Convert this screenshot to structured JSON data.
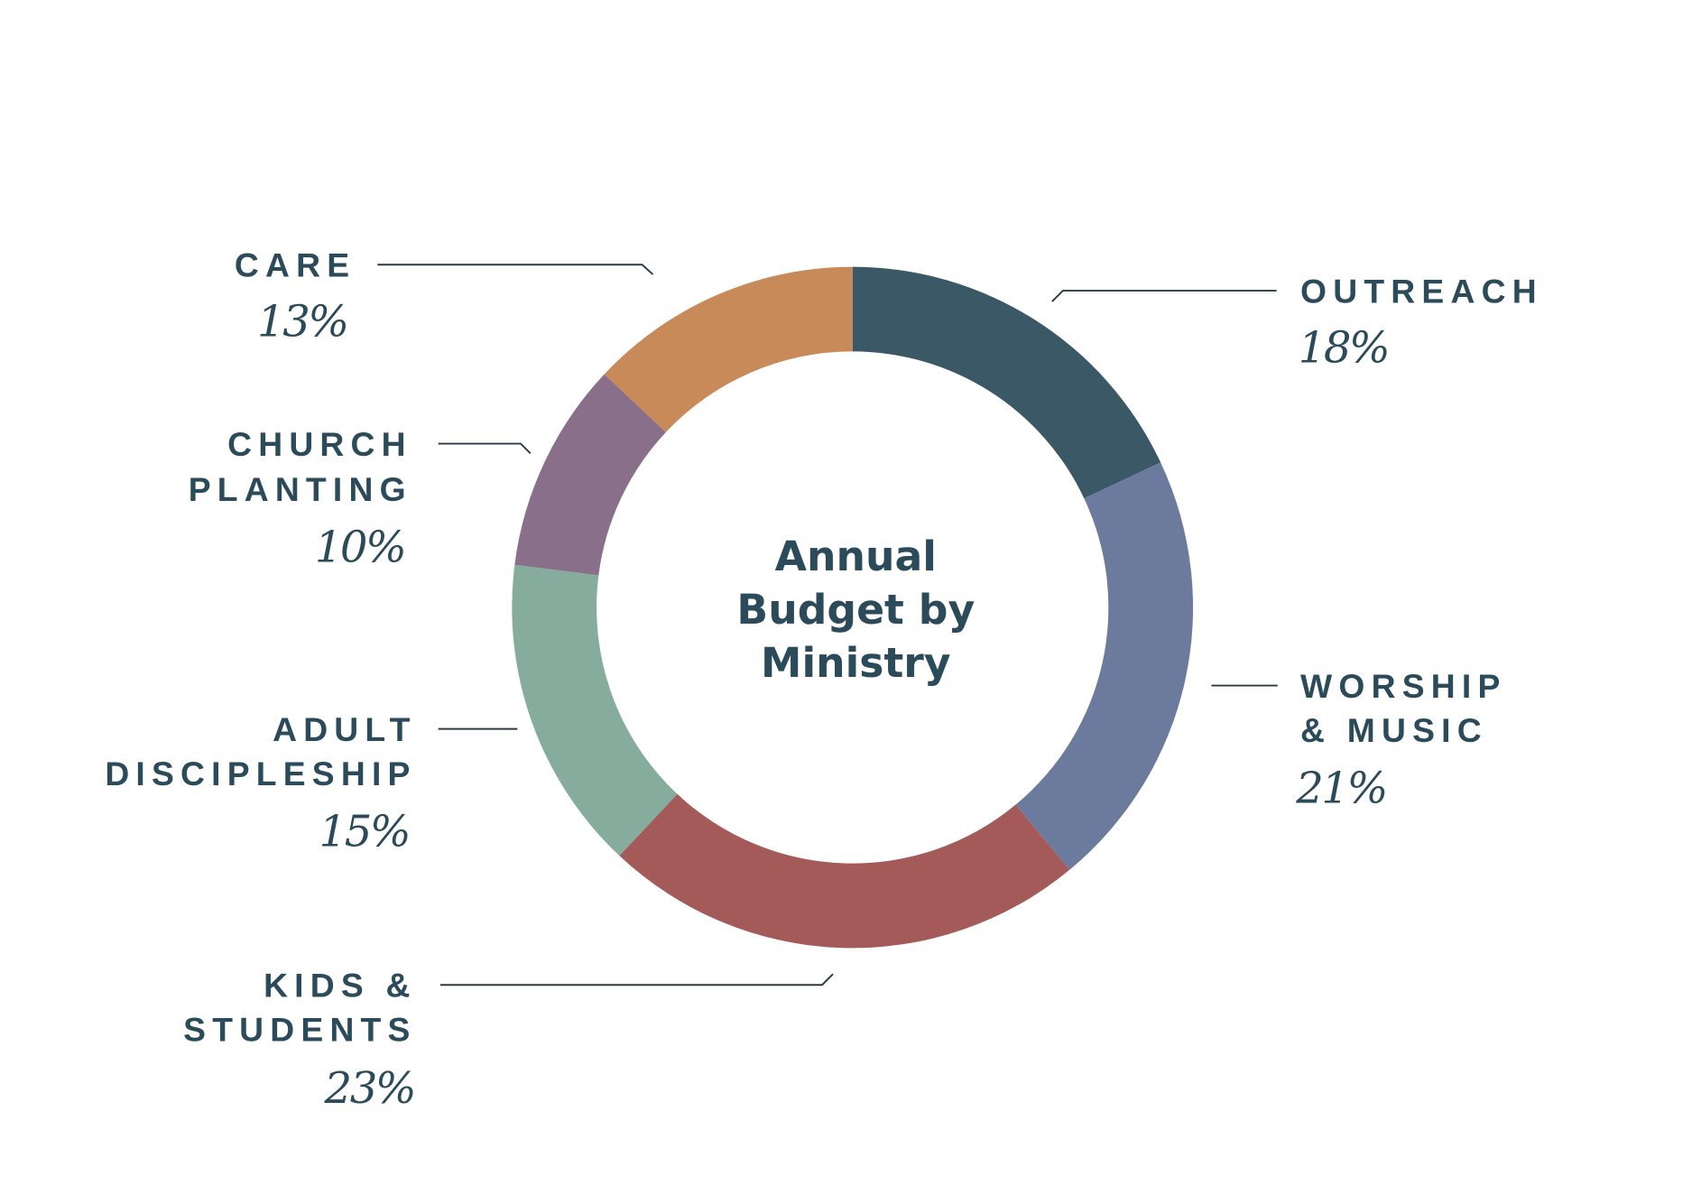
{
  "chart_data": {
    "type": "pie",
    "variant": "donut",
    "title": "Annual Budget by Ministry",
    "title_lines": [
      "Annual",
      "Budget by",
      "Ministry"
    ],
    "start": "top",
    "direction": "clockwise",
    "slices": [
      {
        "key": "outreach",
        "label_lines": [
          "OUTREACH"
        ],
        "value": 18,
        "value_label": "18%",
        "color": "#3a5866"
      },
      {
        "key": "worship",
        "label_lines": [
          "WORSHIP",
          "& MUSIC"
        ],
        "value": 21,
        "value_label": "21%",
        "color": "#6c7a9d"
      },
      {
        "key": "kids",
        "label_lines": [
          "KIDS &",
          "STUDENTS"
        ],
        "value": 23,
        "value_label": "23%",
        "color": "#a35a58"
      },
      {
        "key": "adult",
        "label_lines": [
          "ADULT",
          "DISCIPLESHIP"
        ],
        "value": 15,
        "value_label": "15%",
        "color": "#85ac9d"
      },
      {
        "key": "church",
        "label_lines": [
          "CHURCH",
          "PLANTING"
        ],
        "value": 10,
        "value_label": "10%",
        "color": "#8a6f8a"
      },
      {
        "key": "care",
        "label_lines": [
          "CARE"
        ],
        "value": 13,
        "value_label": "13%",
        "color": "#c98a5a"
      }
    ]
  }
}
